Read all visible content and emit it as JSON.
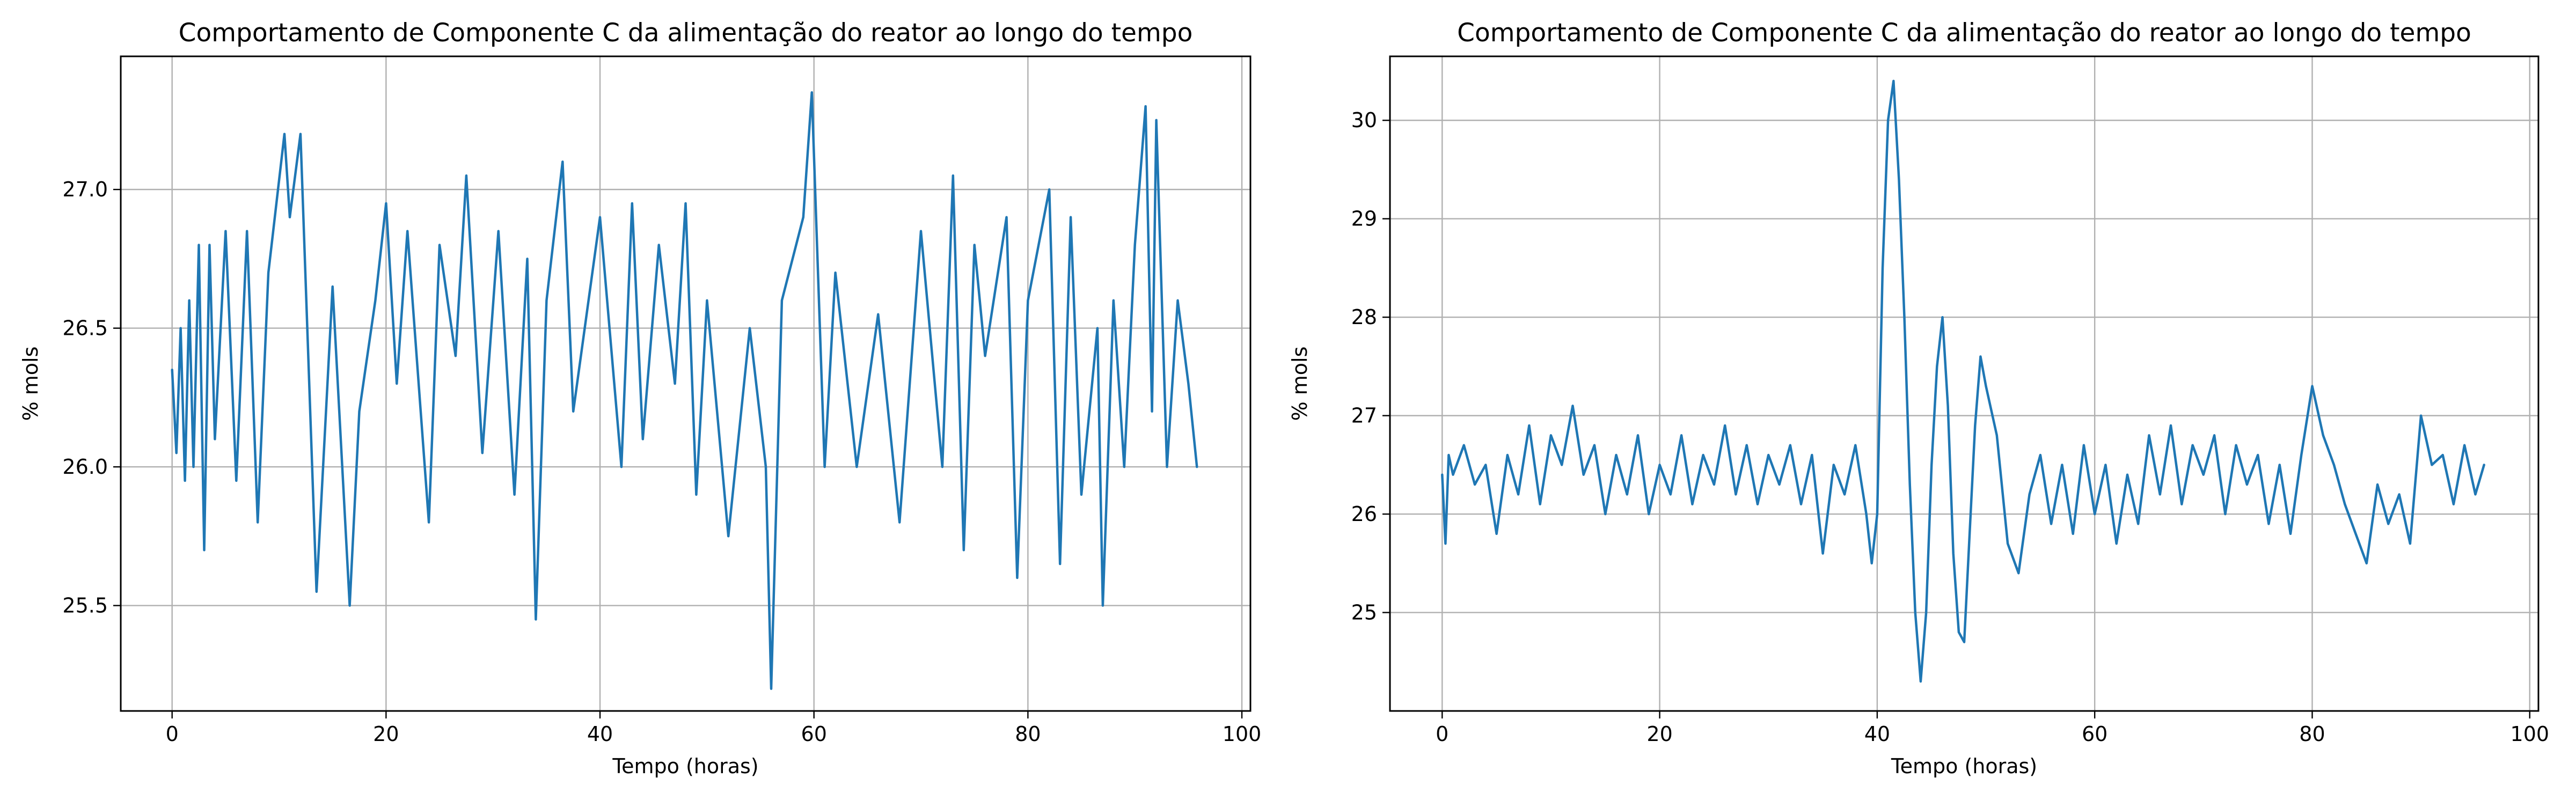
{
  "chart_data": [
    {
      "type": "line",
      "title": "Comportamento de Componente C da alimentação do reator ao longo do tempo",
      "xlabel": "Tempo (horas)",
      "ylabel": "% mols",
      "xlim": [
        -4.8,
        100.8
      ],
      "ylim": [
        25.12,
        27.48
      ],
      "xticks": [
        0,
        20,
        40,
        60,
        80,
        100
      ],
      "yticks": [
        25.5,
        26.0,
        26.5,
        27.0
      ],
      "yticklabels": [
        "25.5",
        "26.0",
        "26.5",
        "27.0"
      ],
      "grid": true,
      "line_color": "#1f77b4",
      "series": [
        {
          "x": [
            0,
            0.4,
            0.8,
            1.2,
            1.6,
            2.0,
            2.5,
            3.0,
            3.5,
            4.0,
            5,
            6,
            7,
            8,
            9,
            10.5,
            11,
            12,
            13.5,
            15,
            16.6,
            17.5,
            19,
            20,
            21,
            22,
            24,
            25,
            26.5,
            27.5,
            29,
            30.5,
            32,
            33.2,
            34,
            35,
            36.5,
            37.5,
            40,
            42,
            43,
            44,
            45.5,
            47,
            48,
            49,
            50,
            52,
            54,
            55.5,
            56,
            57,
            59,
            59.8,
            61,
            62,
            64,
            66,
            68,
            70,
            72,
            73,
            74,
            75,
            76,
            78,
            79,
            80,
            82,
            83,
            84,
            85,
            86.5,
            87,
            88,
            89,
            90,
            91,
            91.6,
            92,
            93,
            94,
            95,
            95.8
          ],
          "y": [
            26.35,
            26.05,
            26.5,
            25.95,
            26.6,
            26.0,
            26.8,
            25.7,
            26.8,
            26.1,
            26.85,
            25.95,
            26.85,
            25.8,
            26.7,
            27.2,
            26.9,
            27.2,
            25.55,
            26.65,
            25.5,
            26.2,
            26.6,
            26.95,
            26.3,
            26.85,
            25.8,
            26.8,
            26.4,
            27.05,
            26.05,
            26.85,
            25.9,
            26.75,
            25.45,
            26.6,
            27.1,
            26.2,
            26.9,
            26.0,
            26.95,
            26.1,
            26.8,
            26.3,
            26.95,
            25.9,
            26.6,
            25.75,
            26.5,
            26.0,
            25.2,
            26.6,
            26.9,
            27.35,
            26.0,
            26.7,
            26.0,
            26.55,
            25.8,
            26.85,
            26.0,
            27.05,
            25.7,
            26.8,
            26.4,
            26.9,
            25.6,
            26.6,
            27.0,
            25.65,
            26.9,
            25.9,
            26.5,
            25.5,
            26.6,
            26.0,
            26.8,
            27.3,
            26.2,
            27.25,
            26.0,
            26.6,
            26.3,
            26.0
          ]
        }
      ]
    },
    {
      "type": "line",
      "title": "Comportamento de Componente C da alimentação do reator ao longo do tempo",
      "xlabel": "Tempo (horas)",
      "ylabel": "% mols",
      "xlim": [
        -4.8,
        100.8
      ],
      "ylim": [
        24.0,
        30.65
      ],
      "xticks": [
        0,
        20,
        40,
        60,
        80,
        100
      ],
      "yticks": [
        25,
        26,
        27,
        28,
        29,
        30
      ],
      "yticklabels": [
        "25",
        "26",
        "27",
        "28",
        "29",
        "30"
      ],
      "grid": true,
      "line_color": "#1f77b4",
      "series": [
        {
          "x": [
            0,
            0.3,
            0.6,
            1,
            2,
            3,
            4,
            5,
            6,
            7,
            8,
            9,
            10,
            11,
            12,
            13,
            14,
            15,
            16,
            17,
            18,
            19,
            20,
            21,
            22,
            23,
            24,
            25,
            26,
            27,
            28,
            29,
            30,
            31,
            32,
            33,
            34,
            35,
            36,
            37,
            38,
            39,
            39.5,
            40,
            40.5,
            41,
            41.5,
            42,
            42.5,
            43,
            43.5,
            44,
            44.5,
            45,
            45.5,
            46,
            46.5,
            47,
            47.5,
            48,
            48.5,
            49,
            49.5,
            50,
            51,
            52,
            53,
            54,
            55,
            56,
            57,
            58,
            59,
            60,
            61,
            62,
            63,
            64,
            65,
            66,
            67,
            68,
            69,
            70,
            71,
            72,
            73,
            74,
            75,
            76,
            77,
            78,
            79,
            80,
            81,
            82,
            83,
            84,
            85,
            86,
            87,
            88,
            89,
            90,
            91,
            92,
            93,
            94,
            95,
            95.8
          ],
          "y": [
            26.4,
            25.7,
            26.6,
            26.4,
            26.7,
            26.3,
            26.5,
            25.8,
            26.6,
            26.2,
            26.9,
            26.1,
            26.8,
            26.5,
            27.1,
            26.4,
            26.7,
            26.0,
            26.6,
            26.2,
            26.8,
            26.0,
            26.5,
            26.2,
            26.8,
            26.1,
            26.6,
            26.3,
            26.9,
            26.2,
            26.7,
            26.1,
            26.6,
            26.3,
            26.7,
            26.1,
            26.6,
            25.6,
            26.5,
            26.2,
            26.7,
            26.0,
            25.5,
            26.0,
            28.5,
            30.0,
            30.4,
            29.4,
            28.0,
            26.3,
            25.0,
            24.3,
            25.0,
            26.5,
            27.5,
            28.0,
            27.1,
            25.6,
            24.8,
            24.7,
            25.8,
            26.9,
            27.6,
            27.3,
            26.8,
            25.7,
            25.4,
            26.2,
            26.6,
            25.9,
            26.5,
            25.8,
            26.7,
            26.0,
            26.5,
            25.7,
            26.4,
            25.9,
            26.8,
            26.2,
            26.9,
            26.1,
            26.7,
            26.4,
            26.8,
            26.0,
            26.7,
            26.3,
            26.6,
            25.9,
            26.5,
            25.8,
            26.6,
            27.3,
            26.8,
            26.5,
            26.1,
            25.8,
            25.5,
            26.3,
            25.9,
            26.2,
            25.7,
            27.0,
            26.5,
            26.6,
            26.1,
            26.7,
            26.2,
            26.5
          ]
        }
      ]
    }
  ]
}
